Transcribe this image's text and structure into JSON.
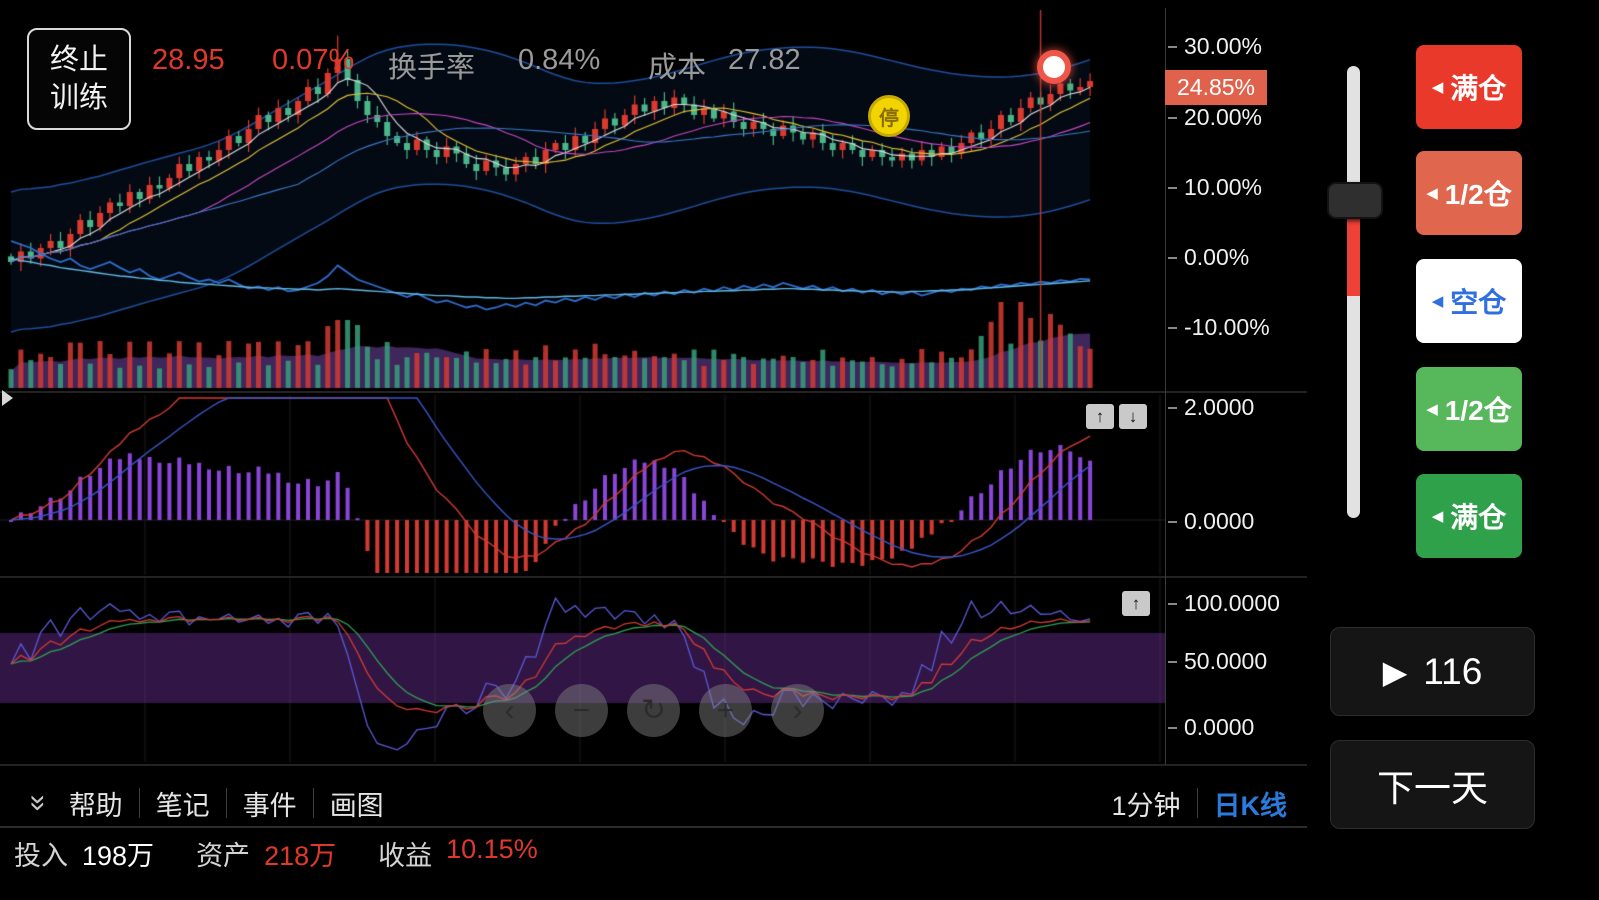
{
  "header": {
    "stop_line1": "终止",
    "stop_line2": "训练",
    "price": "28.95",
    "change_pct": "0.07%",
    "turnover_label": "换手率",
    "turnover_value": "0.84%",
    "cost_label": "成本",
    "cost_value": "27.82"
  },
  "axis": {
    "main": [
      "30.00%",
      "20.00%",
      "10.00%",
      "0.00%",
      "-10.00%"
    ],
    "current_tag": "24.85%",
    "macd": [
      "2.0000",
      "0.0000"
    ],
    "kdj": [
      "100.0000",
      "50.0000",
      "0.0000"
    ]
  },
  "markers": {
    "yellow_event": "停"
  },
  "icons": {
    "up": "↑",
    "down": "↓",
    "chevrons_down": "»",
    "play": "▶",
    "prev": "‹",
    "next": "›",
    "minus": "−",
    "plus": "+",
    "refresh": "↻",
    "arrow_left_small": "◀"
  },
  "toolbar": {
    "items": [
      "帮助",
      "笔记",
      "事件",
      "画图"
    ],
    "period_minute": "1分钟",
    "period_daily": "日K线"
  },
  "status": {
    "invest_label": "投入",
    "invest_value": "198万",
    "asset_label": "资产",
    "asset_value": "218万",
    "profit_label": "收益",
    "profit_value": "10.15%"
  },
  "side": {
    "buttons": [
      {
        "label": "满仓",
        "bg": "#e8392b",
        "fg": "#ffffff"
      },
      {
        "label": "1/2仓",
        "bg": "#e0674e",
        "fg": "#ffffff"
      },
      {
        "label": "空仓",
        "bg": "#ffffff",
        "fg": "#2f6fdf"
      },
      {
        "label": "1/2仓",
        "bg": "#57b75b",
        "fg": "#ffffff"
      },
      {
        "label": "满仓",
        "bg": "#2fa14b",
        "fg": "#ffffff"
      }
    ],
    "play_count": "116",
    "next_day": "下一天"
  },
  "colors": {
    "up_candle": "#db3a2e",
    "down_candle": "#4bb689",
    "tag_bg": "#e0624c",
    "accent_red": "#e0392b",
    "period_blue": "#2b7bdc"
  },
  "chart_data": {
    "type": "candlestick",
    "y_axis_pct": [
      30,
      20,
      10,
      0,
      -10
    ],
    "current_pct": 24.85,
    "closes": [
      -1,
      0.5,
      -0.5,
      1,
      2,
      1,
      3,
      5,
      4,
      6,
      7.5,
      7,
      9,
      8,
      10,
      9.5,
      11,
      13,
      12,
      14,
      13.5,
      15,
      17,
      16,
      18,
      20,
      19,
      21,
      20,
      22,
      24,
      23,
      26,
      28,
      25,
      22,
      20,
      19,
      17,
      16,
      15,
      16.5,
      15,
      14,
      15.5,
      14.5,
      13,
      12,
      13.5,
      12.5,
      11.5,
      13,
      14,
      13,
      15,
      16,
      15,
      17,
      16,
      18,
      19.5,
      18.5,
      20,
      21.5,
      20.5,
      22,
      21,
      22.5,
      21.5,
      20,
      21,
      19.5,
      20.5,
      19,
      18,
      19,
      18,
      17,
      18.5,
      17.5,
      16.5,
      17.5,
      16,
      15,
      16,
      15,
      14,
      15,
      14,
      13.5,
      14.5,
      13.5,
      15,
      14,
      15.5,
      14.5,
      16,
      17.5,
      16.5,
      18,
      20,
      19,
      21,
      22.5,
      21.5,
      23,
      24.5,
      23.5,
      24,
      24.85
    ],
    "blue_line": [
      2,
      1.5,
      1,
      0.2,
      -0.5,
      -1,
      -0.5,
      -1.5,
      -2,
      -1.5,
      -1,
      -1.8,
      -2.5,
      -2,
      -3,
      -3.5,
      -3,
      -2.5,
      -3.2,
      -3.8,
      -3.5,
      -4,
      -3.5,
      -4.2,
      -4.8,
      -4.5,
      -5,
      -4.6,
      -5.2,
      -5,
      -4.5,
      -4,
      -3,
      -1.5,
      -2.5,
      -3.5,
      -4,
      -4.5,
      -5,
      -5.5,
      -6,
      -5.5,
      -6.2,
      -6.8,
      -6.5,
      -7,
      -7.5,
      -7.2,
      -7.8,
      -7.5,
      -7,
      -7.4,
      -6.8,
      -7.2,
      -6.5,
      -6.8,
      -6.2,
      -6.6,
      -6,
      -6.4,
      -5.8,
      -6.2,
      -5.6,
      -6,
      -5.4,
      -5.8,
      -5.2,
      -5.6,
      -5,
      -5.4,
      -4.8,
      -5.2,
      -4.6,
      -5,
      -4.4,
      -4.8,
      -4.2,
      -4.6,
      -4,
      -4.4,
      -4.8,
      -4.4,
      -5,
      -4.6,
      -5.2,
      -4.8,
      -5.4,
      -5,
      -5.6,
      -5.2,
      -5.6,
      -5.2,
      -5.8,
      -5.4,
      -5,
      -5.3,
      -4.8,
      -5,
      -4.5,
      -4.7,
      -4.2,
      -4.4,
      -4,
      -4.2,
      -3.8,
      -4,
      -3.6,
      -3.8,
      -3.4,
      -3.5
    ],
    "cyan_line": [
      -0.5,
      -0.8,
      -1,
      -1.3,
      -1.5,
      -1.8,
      -2,
      -2.2,
      -2.4,
      -2.6,
      -2.8,
      -3,
      -3.1,
      -3.3,
      -3.4,
      -3.6,
      -3.7,
      -3.9,
      -4,
      -4.1,
      -4.2,
      -4.3,
      -4.4,
      -4.5,
      -4.6,
      -4.7,
      -4.7,
      -4.8,
      -4.8,
      -4.9,
      -4.9,
      -5,
      -4.9,
      -4.8,
      -4.9,
      -5,
      -5.1,
      -5.2,
      -5.3,
      -5.4,
      -5.5,
      -5.6,
      -5.7,
      -5.8,
      -5.8,
      -5.9,
      -6,
      -6,
      -6.1,
      -6.1,
      -6.2,
      -6.2,
      -6.1,
      -6.1,
      -6,
      -6,
      -5.9,
      -5.9,
      -5.8,
      -5.8,
      -5.7,
      -5.7,
      -5.6,
      -5.6,
      -5.5,
      -5.5,
      -5.4,
      -5.4,
      -5.3,
      -5.3,
      -5.2,
      -5.2,
      -5.1,
      -5.1,
      -5,
      -5,
      -4.9,
      -4.9,
      -4.8,
      -4.8,
      -4.9,
      -4.9,
      -5,
      -5,
      -5.1,
      -5.1,
      -5.2,
      -5.2,
      -5.2,
      -5.3,
      -5.3,
      -5.2,
      -5.2,
      -5.1,
      -5.1,
      -5,
      -5,
      -4.9,
      -4.8,
      -4.7,
      -4.6,
      -4.5,
      -4.4,
      -4.3,
      -4.2,
      -4.1,
      -4,
      -3.9,
      -3.8,
      -3.7
    ]
  }
}
